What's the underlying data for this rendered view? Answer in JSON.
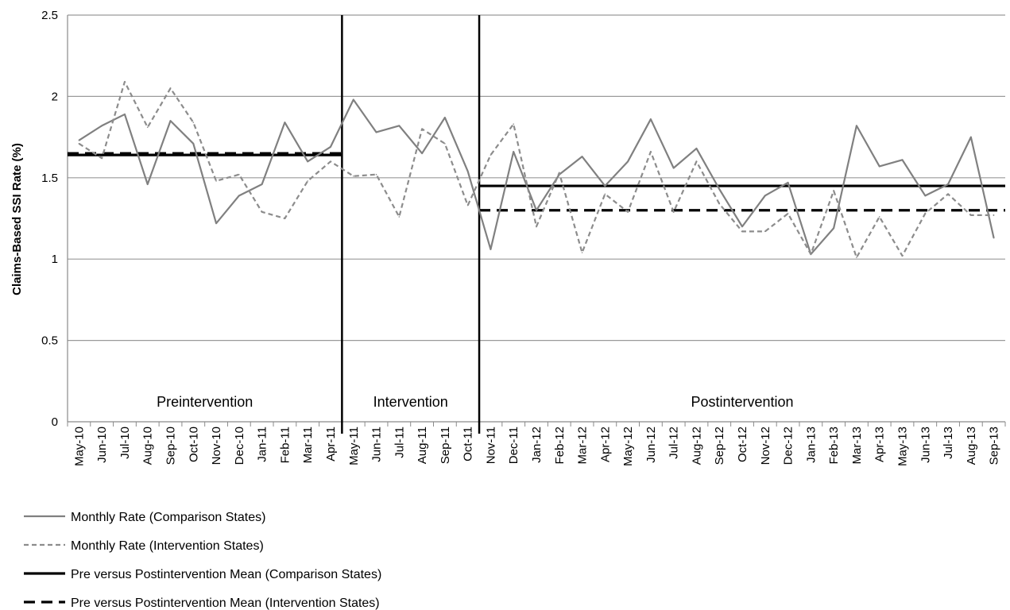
{
  "chart_data": {
    "type": "line",
    "ylabel": "Claims-Based SSI Rate (%)",
    "ylim": [
      0,
      2.5
    ],
    "yticks": [
      0,
      0.5,
      1,
      1.5,
      2,
      2.5
    ],
    "ytick_labels": [
      "0",
      "0.5",
      "1",
      "1.5",
      "2",
      "2.5"
    ],
    "grid": true,
    "legend_position": "bottom",
    "categories": [
      "May-10",
      "Jun-10",
      "Jul-10",
      "Aug-10",
      "Sep-10",
      "Oct-10",
      "Nov-10",
      "Dec-10",
      "Jan-11",
      "Feb-11",
      "Mar-11",
      "Apr-11",
      "May-11",
      "Jun-11",
      "Jul-11",
      "Aug-11",
      "Sep-11",
      "Oct-11",
      "Nov-11",
      "Dec-11",
      "Jan-12",
      "Feb-12",
      "Mar-12",
      "Apr-12",
      "May-12",
      "Jun-12",
      "Jul-12",
      "Aug-12",
      "Sep-12",
      "Oct-12",
      "Nov-12",
      "Dec-12",
      "Jan-13",
      "Feb-13",
      "Mar-13",
      "Apr-13",
      "May-13",
      "Jun-13",
      "Jul-13",
      "Aug-13",
      "Sep-13"
    ],
    "phases": [
      {
        "label": "Preintervention",
        "start": "May-10",
        "end": "Apr-11"
      },
      {
        "label": "Intervention",
        "start": "May-11",
        "end": "Oct-11"
      },
      {
        "label": "Postintervention",
        "start": "Nov-11",
        "end": "Sep-13"
      }
    ],
    "series": [
      {
        "name": "Monthly Rate (Comparison States)",
        "color": "#808080",
        "style": "solid",
        "values": [
          1.73,
          1.82,
          1.89,
          1.46,
          1.85,
          1.71,
          1.22,
          1.39,
          1.46,
          1.84,
          1.6,
          1.69,
          1.98,
          1.78,
          1.82,
          1.65,
          1.87,
          1.54,
          1.06,
          1.66,
          1.3,
          1.52,
          1.63,
          1.45,
          1.6,
          1.86,
          1.56,
          1.68,
          1.43,
          1.2,
          1.39,
          1.47,
          1.03,
          1.19,
          1.82,
          1.57,
          1.61,
          1.39,
          1.46,
          1.75,
          1.13
        ]
      },
      {
        "name": "Monthly Rate (Intervention States)",
        "color": "#8c8c8c",
        "style": "dashed",
        "values": [
          1.71,
          1.62,
          2.09,
          1.81,
          2.05,
          1.84,
          1.48,
          1.52,
          1.29,
          1.25,
          1.48,
          1.6,
          1.51,
          1.52,
          1.26,
          1.8,
          1.71,
          1.33,
          1.64,
          1.83,
          1.2,
          1.53,
          1.04,
          1.4,
          1.29,
          1.66,
          1.29,
          1.6,
          1.34,
          1.17,
          1.17,
          1.28,
          1.03,
          1.42,
          1.01,
          1.26,
          1.02,
          1.28,
          1.4,
          1.27,
          1.27
        ]
      }
    ],
    "means": [
      {
        "name": "Pre versus Postintervention Mean (Comparison States)",
        "color": "#000000",
        "style": "solid",
        "segments": [
          {
            "start": "May-10",
            "end": "Apr-11",
            "value": 1.64
          },
          {
            "start": "Nov-11",
            "end": "Sep-13",
            "value": 1.45
          }
        ]
      },
      {
        "name": "Pre versus Postintervention Mean (Intervention States)",
        "color": "#000000",
        "style": "dashed",
        "segments": [
          {
            "start": "May-10",
            "end": "Apr-11",
            "value": 1.65
          },
          {
            "start": "Nov-11",
            "end": "Sep-13",
            "value": 1.3
          }
        ]
      }
    ]
  }
}
